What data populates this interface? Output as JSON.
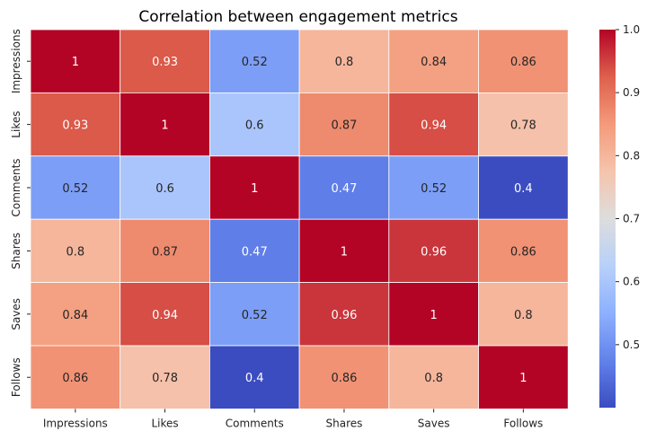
{
  "chart_data": {
    "type": "heatmap",
    "title": "Correlation between engagement metrics",
    "x_labels": [
      "Impressions",
      "Likes",
      "Comments",
      "Shares",
      "Saves",
      "Follows"
    ],
    "y_labels": [
      "Impressions",
      "Likes",
      "Comments",
      "Shares",
      "Saves",
      "Follows"
    ],
    "values": [
      [
        1,
        0.93,
        0.52,
        0.8,
        0.84,
        0.86
      ],
      [
        0.93,
        1,
        0.6,
        0.87,
        0.94,
        0.78
      ],
      [
        0.52,
        0.6,
        1,
        0.47,
        0.52,
        0.4
      ],
      [
        0.8,
        0.87,
        0.47,
        1,
        0.96,
        0.86
      ],
      [
        0.84,
        0.94,
        0.52,
        0.96,
        1,
        0.8
      ],
      [
        0.86,
        0.78,
        0.4,
        0.86,
        0.8,
        1
      ]
    ],
    "colormap": "coolwarm",
    "vmin": 0.4,
    "vmax": 1.0,
    "colorbar_ticks": [
      "0.5",
      "0.6",
      "0.7",
      "0.8",
      "0.9",
      "1.0"
    ],
    "annotations": true,
    "grid": false
  }
}
